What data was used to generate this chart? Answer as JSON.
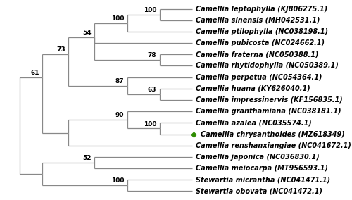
{
  "taxa": [
    "Camellia leptophylla (KJ806275.1)",
    "Camellia sinensis (MH042531.1)",
    "Camellia ptilophylla (NC038198.1)",
    "Camellia pubicosta (NC024662.1)",
    "Camellia fraterna (NC050388.1)",
    "Camellia rhytidophylla (NC050389.1)",
    "Camellia perpetua (NC054364.1)",
    "Camellia huana (KY626040.1)",
    "Camellia impressinervis (KF156835.1)",
    "Camellia granthamiana (NC038181.1)",
    "Camellia azalea (NC035574.1)",
    "Camellia chrysanthoides (MZ618349)",
    "Camellia renshanxiangiae (NC041672.1)",
    "Camellia japonica (NC036830.1)",
    "Camellia meiocarpa (MT956593.1)",
    "Stewartia micrantha (NC041471.1)",
    "Stewartia obovata (NC041472.1)"
  ],
  "highlight_taxon_idx": 11,
  "highlight_color": "#2d8c00",
  "line_color": "#888888",
  "text_color": "#000000",
  "bootstrap_color": "#000000",
  "background_color": "#ffffff",
  "font_size": 7.0,
  "bootstrap_font_size": 6.5,
  "lw": 0.9
}
